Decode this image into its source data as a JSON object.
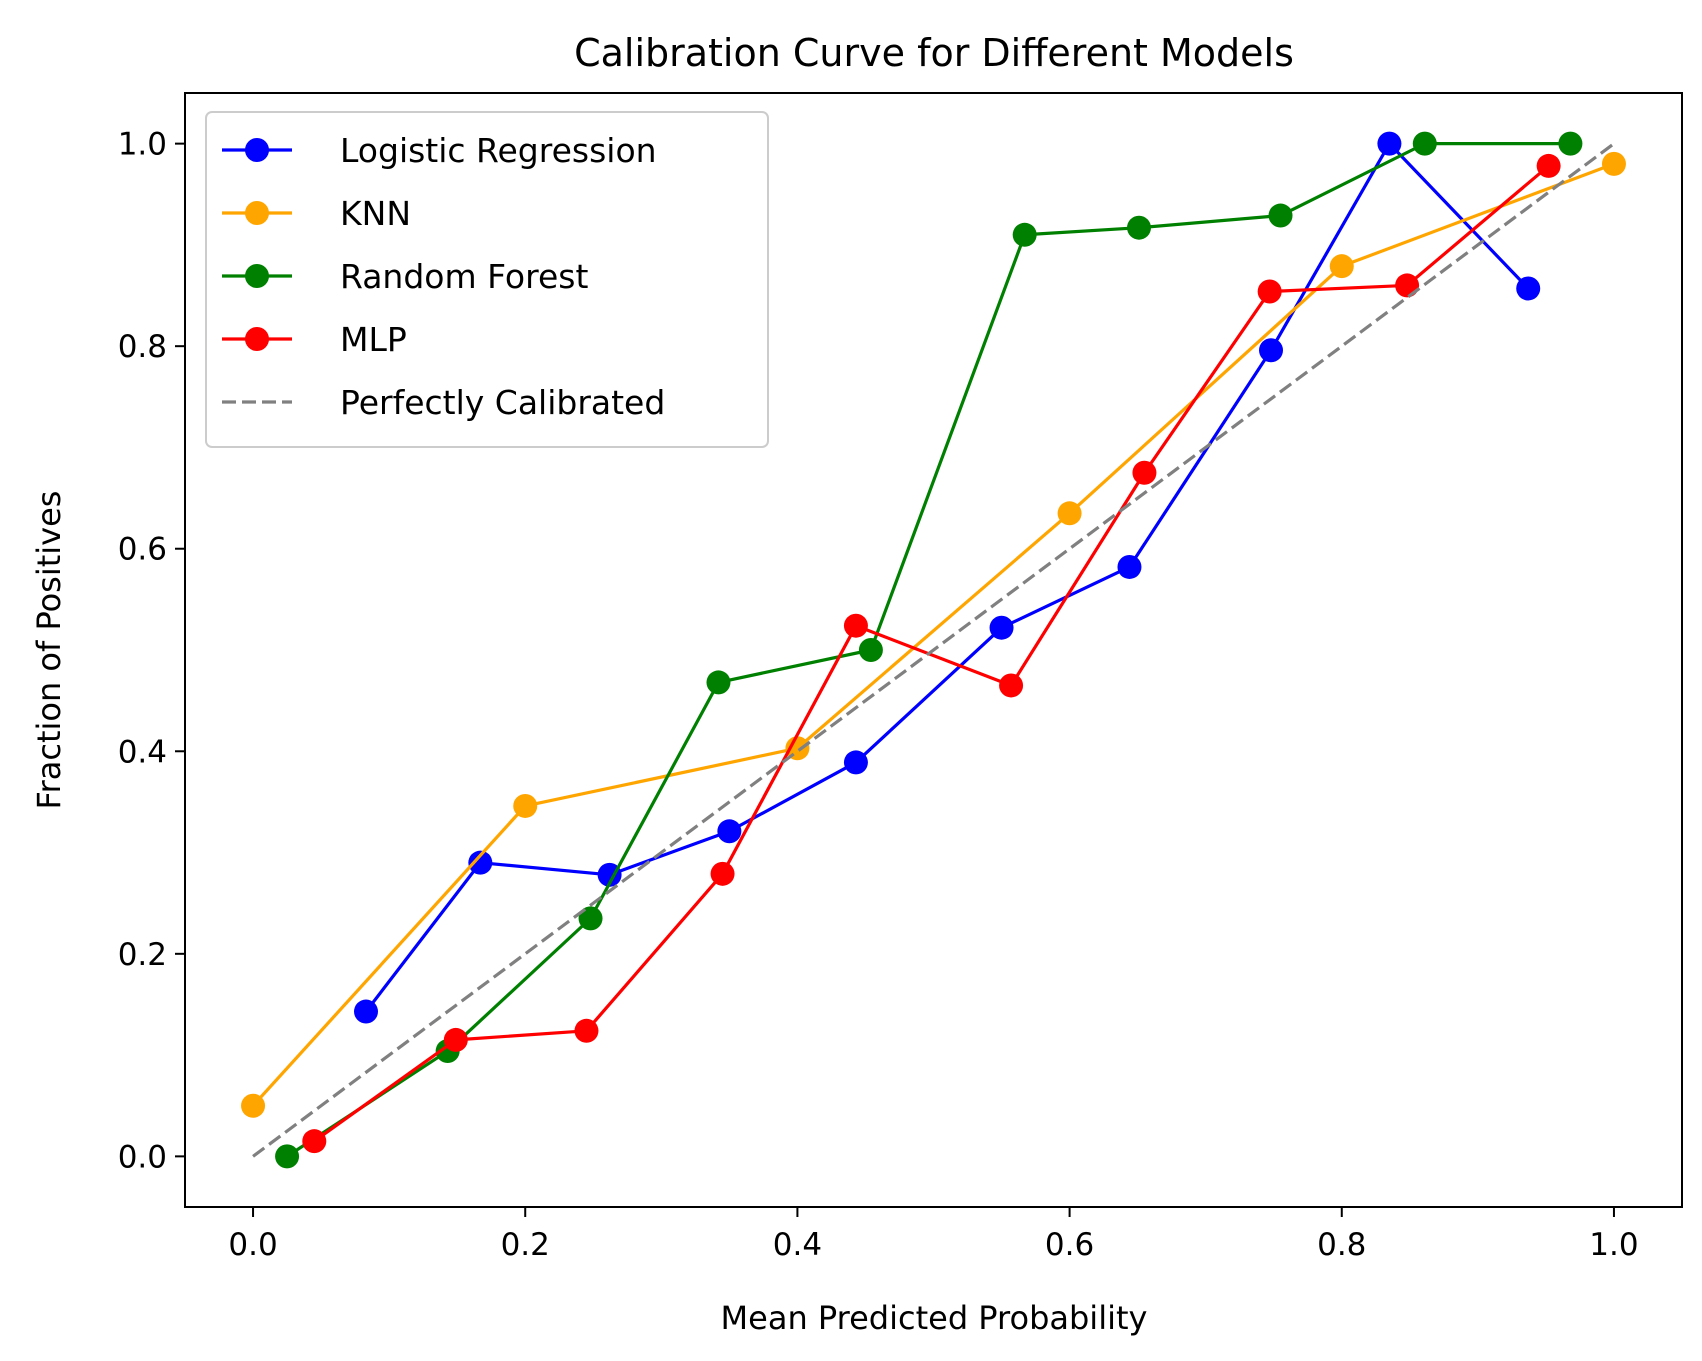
{
  "chart_data": {
    "type": "line",
    "title": "Calibration Curve for Different Models",
    "xlabel": "Mean Predicted Probability",
    "ylabel": "Fraction of Positives",
    "xlim": [
      -0.05,
      1.05
    ],
    "ylim": [
      -0.05,
      1.05
    ],
    "xticks": [
      0.0,
      0.2,
      0.4,
      0.6,
      0.8,
      1.0
    ],
    "xtick_labels": [
      "0.0",
      "0.2",
      "0.4",
      "0.6",
      "0.8",
      "1.0"
    ],
    "yticks": [
      0.0,
      0.2,
      0.4,
      0.6,
      0.8,
      1.0
    ],
    "ytick_labels": [
      "0.0",
      "0.2",
      "0.4",
      "0.6",
      "0.8",
      "1.0"
    ],
    "legend_position": "top-left",
    "grid": false,
    "series": [
      {
        "name": "Logistic Regression",
        "color": "#0000ff",
        "marker": true,
        "dashed": false,
        "x": [
          0.083,
          0.167,
          0.262,
          0.35,
          0.443,
          0.55,
          0.644,
          0.748,
          0.835,
          0.937
        ],
        "y": [
          0.143,
          0.29,
          0.278,
          0.321,
          0.389,
          0.522,
          0.582,
          0.796,
          1.0,
          0.857
        ]
      },
      {
        "name": "KNN",
        "color": "#ffa500",
        "marker": true,
        "dashed": false,
        "x": [
          0.0,
          0.2,
          0.4,
          0.6,
          0.8,
          1.0
        ],
        "y": [
          0.05,
          0.346,
          0.403,
          0.635,
          0.879,
          0.98
        ]
      },
      {
        "name": "Random Forest",
        "color": "#008000",
        "marker": true,
        "dashed": false,
        "x": [
          0.025,
          0.143,
          0.248,
          0.342,
          0.454,
          0.567,
          0.651,
          0.755,
          0.861,
          0.968
        ],
        "y": [
          0.0,
          0.104,
          0.235,
          0.468,
          0.5,
          0.91,
          0.917,
          0.929,
          1.0,
          1.0
        ]
      },
      {
        "name": "MLP",
        "color": "#ff0000",
        "marker": true,
        "dashed": false,
        "x": [
          0.045,
          0.149,
          0.245,
          0.345,
          0.443,
          0.557,
          0.655,
          0.747,
          0.848,
          0.952
        ],
        "y": [
          0.015,
          0.115,
          0.124,
          0.279,
          0.524,
          0.465,
          0.675,
          0.854,
          0.86,
          0.978
        ]
      },
      {
        "name": "Perfectly Calibrated",
        "color": "#808080",
        "marker": false,
        "dashed": true,
        "x": [
          0.0,
          1.0
        ],
        "y": [
          0.0,
          1.0
        ]
      }
    ]
  }
}
